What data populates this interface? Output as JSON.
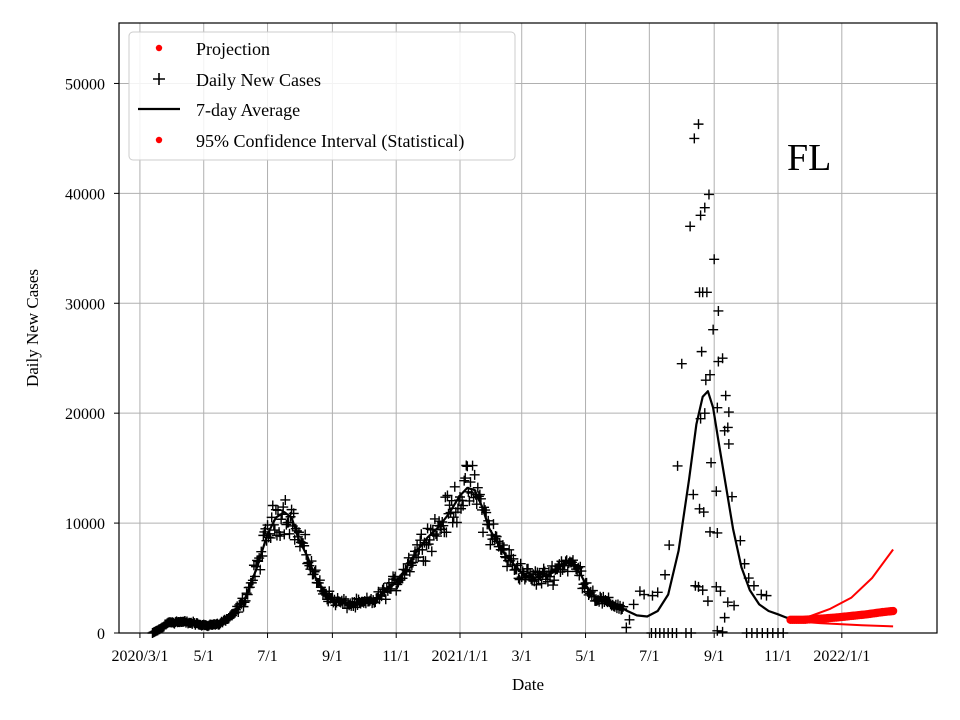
{
  "chart_data": {
    "type": "scatter",
    "region_label": "FL",
    "xlabel": "Date",
    "ylabel": "Daily New Cases",
    "xlim": [
      -20,
      762
    ],
    "ylim": [
      0,
      55500
    ],
    "grid": true,
    "legend_position": "top-left",
    "x_ticks": [
      {
        "day": 0,
        "label": "2020/3/1"
      },
      {
        "day": 61,
        "label": "5/1"
      },
      {
        "day": 122,
        "label": "7/1"
      },
      {
        "day": 184,
        "label": "9/1"
      },
      {
        "day": 245,
        "label": "11/1"
      },
      {
        "day": 306,
        "label": "2021/1/1"
      },
      {
        "day": 365,
        "label": "3/1"
      },
      {
        "day": 426,
        "label": "5/1"
      },
      {
        "day": 487,
        "label": "7/1"
      },
      {
        "day": 549,
        "label": "9/1"
      },
      {
        "day": 610,
        "label": "11/1"
      },
      {
        "day": 671,
        "label": "2022/1/1"
      }
    ],
    "y_ticks": [
      {
        "value": 0,
        "label": "0"
      },
      {
        "value": 10000,
        "label": "10000"
      },
      {
        "value": 20000,
        "label": "20000"
      },
      {
        "value": 30000,
        "label": "30000"
      },
      {
        "value": 40000,
        "label": "40000"
      },
      {
        "value": 50000,
        "label": "50000"
      }
    ],
    "legend": [
      {
        "label": "Projection",
        "marker": "dot",
        "color": "#ff0000"
      },
      {
        "label": "Daily New Cases",
        "marker": "plus",
        "color": "#000000"
      },
      {
        "label": "7-day Average",
        "marker": "line",
        "color": "#000000"
      },
      {
        "label": "95% Confidence Interval (Statistical)",
        "marker": "dot",
        "color": "#ff0000"
      }
    ],
    "series": [
      {
        "name": "7-day Average",
        "style": "line",
        "color": "#000000",
        "points": [
          [
            12,
            0
          ],
          [
            20,
            400
          ],
          [
            28,
            1000
          ],
          [
            40,
            1000
          ],
          [
            50,
            900
          ],
          [
            61,
            700
          ],
          [
            75,
            800
          ],
          [
            88,
            1500
          ],
          [
            100,
            3000
          ],
          [
            112,
            6000
          ],
          [
            122,
            9000
          ],
          [
            130,
            10500
          ],
          [
            138,
            11000
          ],
          [
            145,
            10500
          ],
          [
            152,
            8500
          ],
          [
            160,
            7000
          ],
          [
            168,
            5000
          ],
          [
            176,
            3800
          ],
          [
            184,
            3000
          ],
          [
            195,
            2700
          ],
          [
            205,
            2600
          ],
          [
            215,
            2700
          ],
          [
            225,
            3000
          ],
          [
            235,
            3800
          ],
          [
            245,
            4600
          ],
          [
            255,
            6000
          ],
          [
            265,
            7500
          ],
          [
            275,
            8700
          ],
          [
            285,
            9600
          ],
          [
            295,
            10800
          ],
          [
            306,
            12500
          ],
          [
            313,
            13200
          ],
          [
            320,
            13000
          ],
          [
            327,
            11500
          ],
          [
            334,
            9500
          ],
          [
            342,
            8200
          ],
          [
            350,
            7000
          ],
          [
            358,
            6200
          ],
          [
            365,
            5500
          ],
          [
            375,
            5000
          ],
          [
            385,
            5100
          ],
          [
            395,
            5500
          ],
          [
            405,
            6400
          ],
          [
            413,
            6300
          ],
          [
            421,
            5400
          ],
          [
            428,
            4100
          ],
          [
            436,
            3200
          ],
          [
            445,
            2800
          ],
          [
            456,
            2500
          ],
          [
            466,
            2000
          ],
          [
            475,
            1600
          ],
          [
            485,
            1500
          ],
          [
            495,
            2000
          ],
          [
            505,
            3500
          ],
          [
            515,
            7500
          ],
          [
            525,
            14000
          ],
          [
            532,
            19000
          ],
          [
            538,
            21500
          ],
          [
            543,
            22000
          ],
          [
            548,
            20500
          ],
          [
            553,
            17500
          ],
          [
            560,
            13500
          ],
          [
            567,
            9500
          ],
          [
            575,
            6000
          ],
          [
            583,
            3900
          ],
          [
            592,
            2600
          ],
          [
            601,
            2000
          ],
          [
            610,
            1700
          ],
          [
            618,
            1400
          ],
          [
            625,
            1300
          ]
        ]
      },
      {
        "name": "Projection",
        "style": "dots",
        "color": "#ff0000",
        "points": [
          [
            622,
            1200
          ],
          [
            635,
            1200
          ],
          [
            650,
            1300
          ],
          [
            665,
            1400
          ],
          [
            680,
            1550
          ],
          [
            695,
            1700
          ],
          [
            710,
            1900
          ],
          [
            720,
            2000
          ]
        ]
      },
      {
        "name": "95% Confidence Interval (Statistical) upper",
        "style": "line",
        "color": "#ff0000",
        "points": [
          [
            622,
            1200
          ],
          [
            640,
            1500
          ],
          [
            660,
            2200
          ],
          [
            680,
            3200
          ],
          [
            700,
            5000
          ],
          [
            720,
            7600
          ]
        ]
      },
      {
        "name": "95% Confidence Interval (Statistical) lower",
        "style": "line",
        "color": "#ff0000",
        "points": [
          [
            622,
            1100
          ],
          [
            650,
            900
          ],
          [
            690,
            700
          ],
          [
            720,
            600
          ]
        ]
      }
    ],
    "daily_new_cases_extra": [
      [
        465,
        500
      ],
      [
        468,
        1200
      ],
      [
        472,
        2600
      ],
      [
        478,
        3800
      ],
      [
        482,
        3500
      ],
      [
        490,
        3400
      ],
      [
        495,
        3700
      ],
      [
        502,
        5300
      ],
      [
        506,
        8000
      ],
      [
        514,
        15200
      ],
      [
        518,
        24500
      ],
      [
        526,
        37000
      ],
      [
        530,
        45000
      ],
      [
        534,
        46300
      ],
      [
        536,
        38000
      ],
      [
        540,
        38700
      ],
      [
        544,
        39900
      ],
      [
        535,
        31000
      ],
      [
        538,
        31000
      ],
      [
        542,
        31000
      ],
      [
        537,
        25600
      ],
      [
        541,
        23000
      ],
      [
        545,
        23500
      ],
      [
        549,
        34000
      ],
      [
        548,
        27600
      ],
      [
        553,
        29300
      ],
      [
        553,
        24700
      ],
      [
        557,
        25000
      ],
      [
        560,
        21600
      ],
      [
        563,
        20100
      ],
      [
        559,
        18400
      ],
      [
        562,
        18700
      ],
      [
        563,
        17200
      ],
      [
        552,
        20500
      ],
      [
        540,
        20000
      ],
      [
        536,
        19500
      ],
      [
        546,
        15500
      ],
      [
        551,
        12900
      ],
      [
        529,
        12600
      ],
      [
        535,
        11300
      ],
      [
        539,
        11000
      ],
      [
        545,
        9200
      ],
      [
        552,
        9100
      ],
      [
        566,
        12400
      ],
      [
        574,
        8400
      ],
      [
        578,
        6300
      ],
      [
        582,
        5000
      ],
      [
        587,
        4300
      ],
      [
        594,
        3500
      ],
      [
        599,
        3400
      ],
      [
        531,
        4300
      ],
      [
        534,
        4200
      ],
      [
        538,
        3900
      ],
      [
        543,
        2900
      ],
      [
        551,
        4200
      ],
      [
        555,
        3800
      ],
      [
        559,
        1400
      ],
      [
        562,
        2800
      ],
      [
        568,
        2500
      ],
      [
        552,
        200
      ],
      [
        557,
        100
      ],
      [
        489,
        0
      ],
      [
        493,
        0
      ],
      [
        497,
        0
      ],
      [
        501,
        0
      ],
      [
        505,
        0
      ],
      [
        509,
        0
      ],
      [
        513,
        0
      ],
      [
        522,
        0
      ],
      [
        527,
        0
      ],
      [
        580,
        0
      ],
      [
        585,
        0
      ],
      [
        590,
        0
      ],
      [
        595,
        0
      ],
      [
        600,
        0
      ],
      [
        605,
        0
      ],
      [
        610,
        0
      ],
      [
        615,
        0
      ]
    ]
  }
}
